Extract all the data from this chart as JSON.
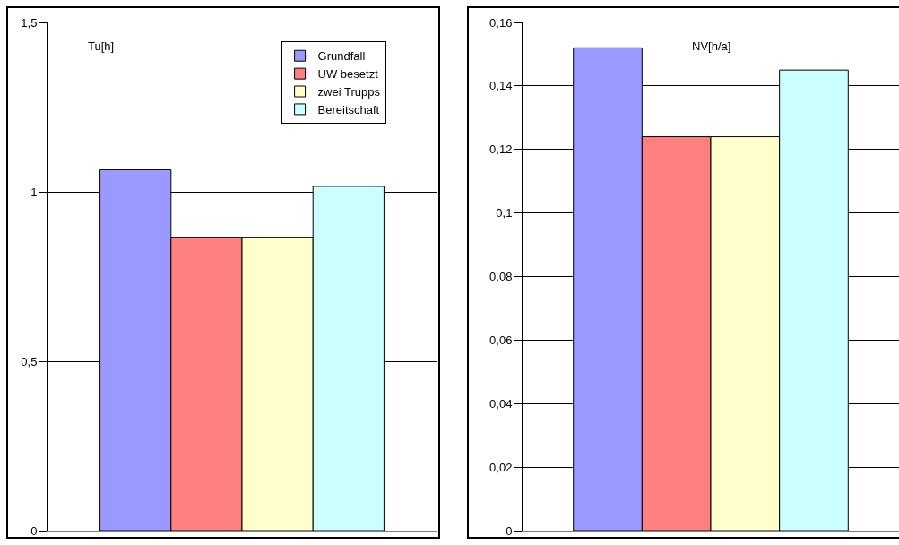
{
  "chart_data": [
    {
      "type": "bar",
      "title": "Tu[h]",
      "categories": [
        null
      ],
      "series": [
        {
          "name": "Grundfall",
          "color": "#9999ff",
          "values": [
            1.065
          ]
        },
        {
          "name": "UW besetzt",
          "color": "#ff8080",
          "values": [
            0.866
          ]
        },
        {
          "name": "zwei Trupps",
          "color": "#ffffcc",
          "values": [
            0.866
          ]
        },
        {
          "name": "Bereitschaft",
          "color": "#ccffff",
          "values": [
            1.016
          ]
        }
      ],
      "ylim": [
        0,
        1.5
      ],
      "yticks": [
        0,
        {
          "value": 0.5,
          "label": "0,5"
        },
        1,
        {
          "value": 1.5,
          "label": "1,5"
        }
      ],
      "grid": "y",
      "legend": "top right"
    },
    {
      "type": "bar",
      "title": "NV[h/a]",
      "categories": [
        null
      ],
      "series": [
        {
          "color": "#9999ff",
          "values": [
            0.152
          ]
        },
        {
          "color": "#ff8080",
          "values": [
            0.124
          ]
        },
        {
          "color": "#ffffcc",
          "values": [
            0.124
          ]
        },
        {
          "color": "#ccffff",
          "values": [
            0.145
          ]
        }
      ],
      "ylim": [
        0,
        0.16
      ],
      "yticks": [
        0,
        {
          "value": 0.02,
          "label": "0,02"
        },
        {
          "value": 0.04,
          "label": "0,04"
        },
        {
          "value": 0.06,
          "label": "0,06"
        },
        {
          "value": 0.08,
          "label": "0,08"
        },
        {
          "value": 0.1,
          "label": "0,1"
        },
        {
          "value": 0.12,
          "label": "0,12"
        },
        {
          "value": 0.14,
          "label": "0,14"
        },
        {
          "value": 0.16,
          "label": "0,16"
        }
      ],
      "grid": "y",
      "legend": false
    }
  ]
}
